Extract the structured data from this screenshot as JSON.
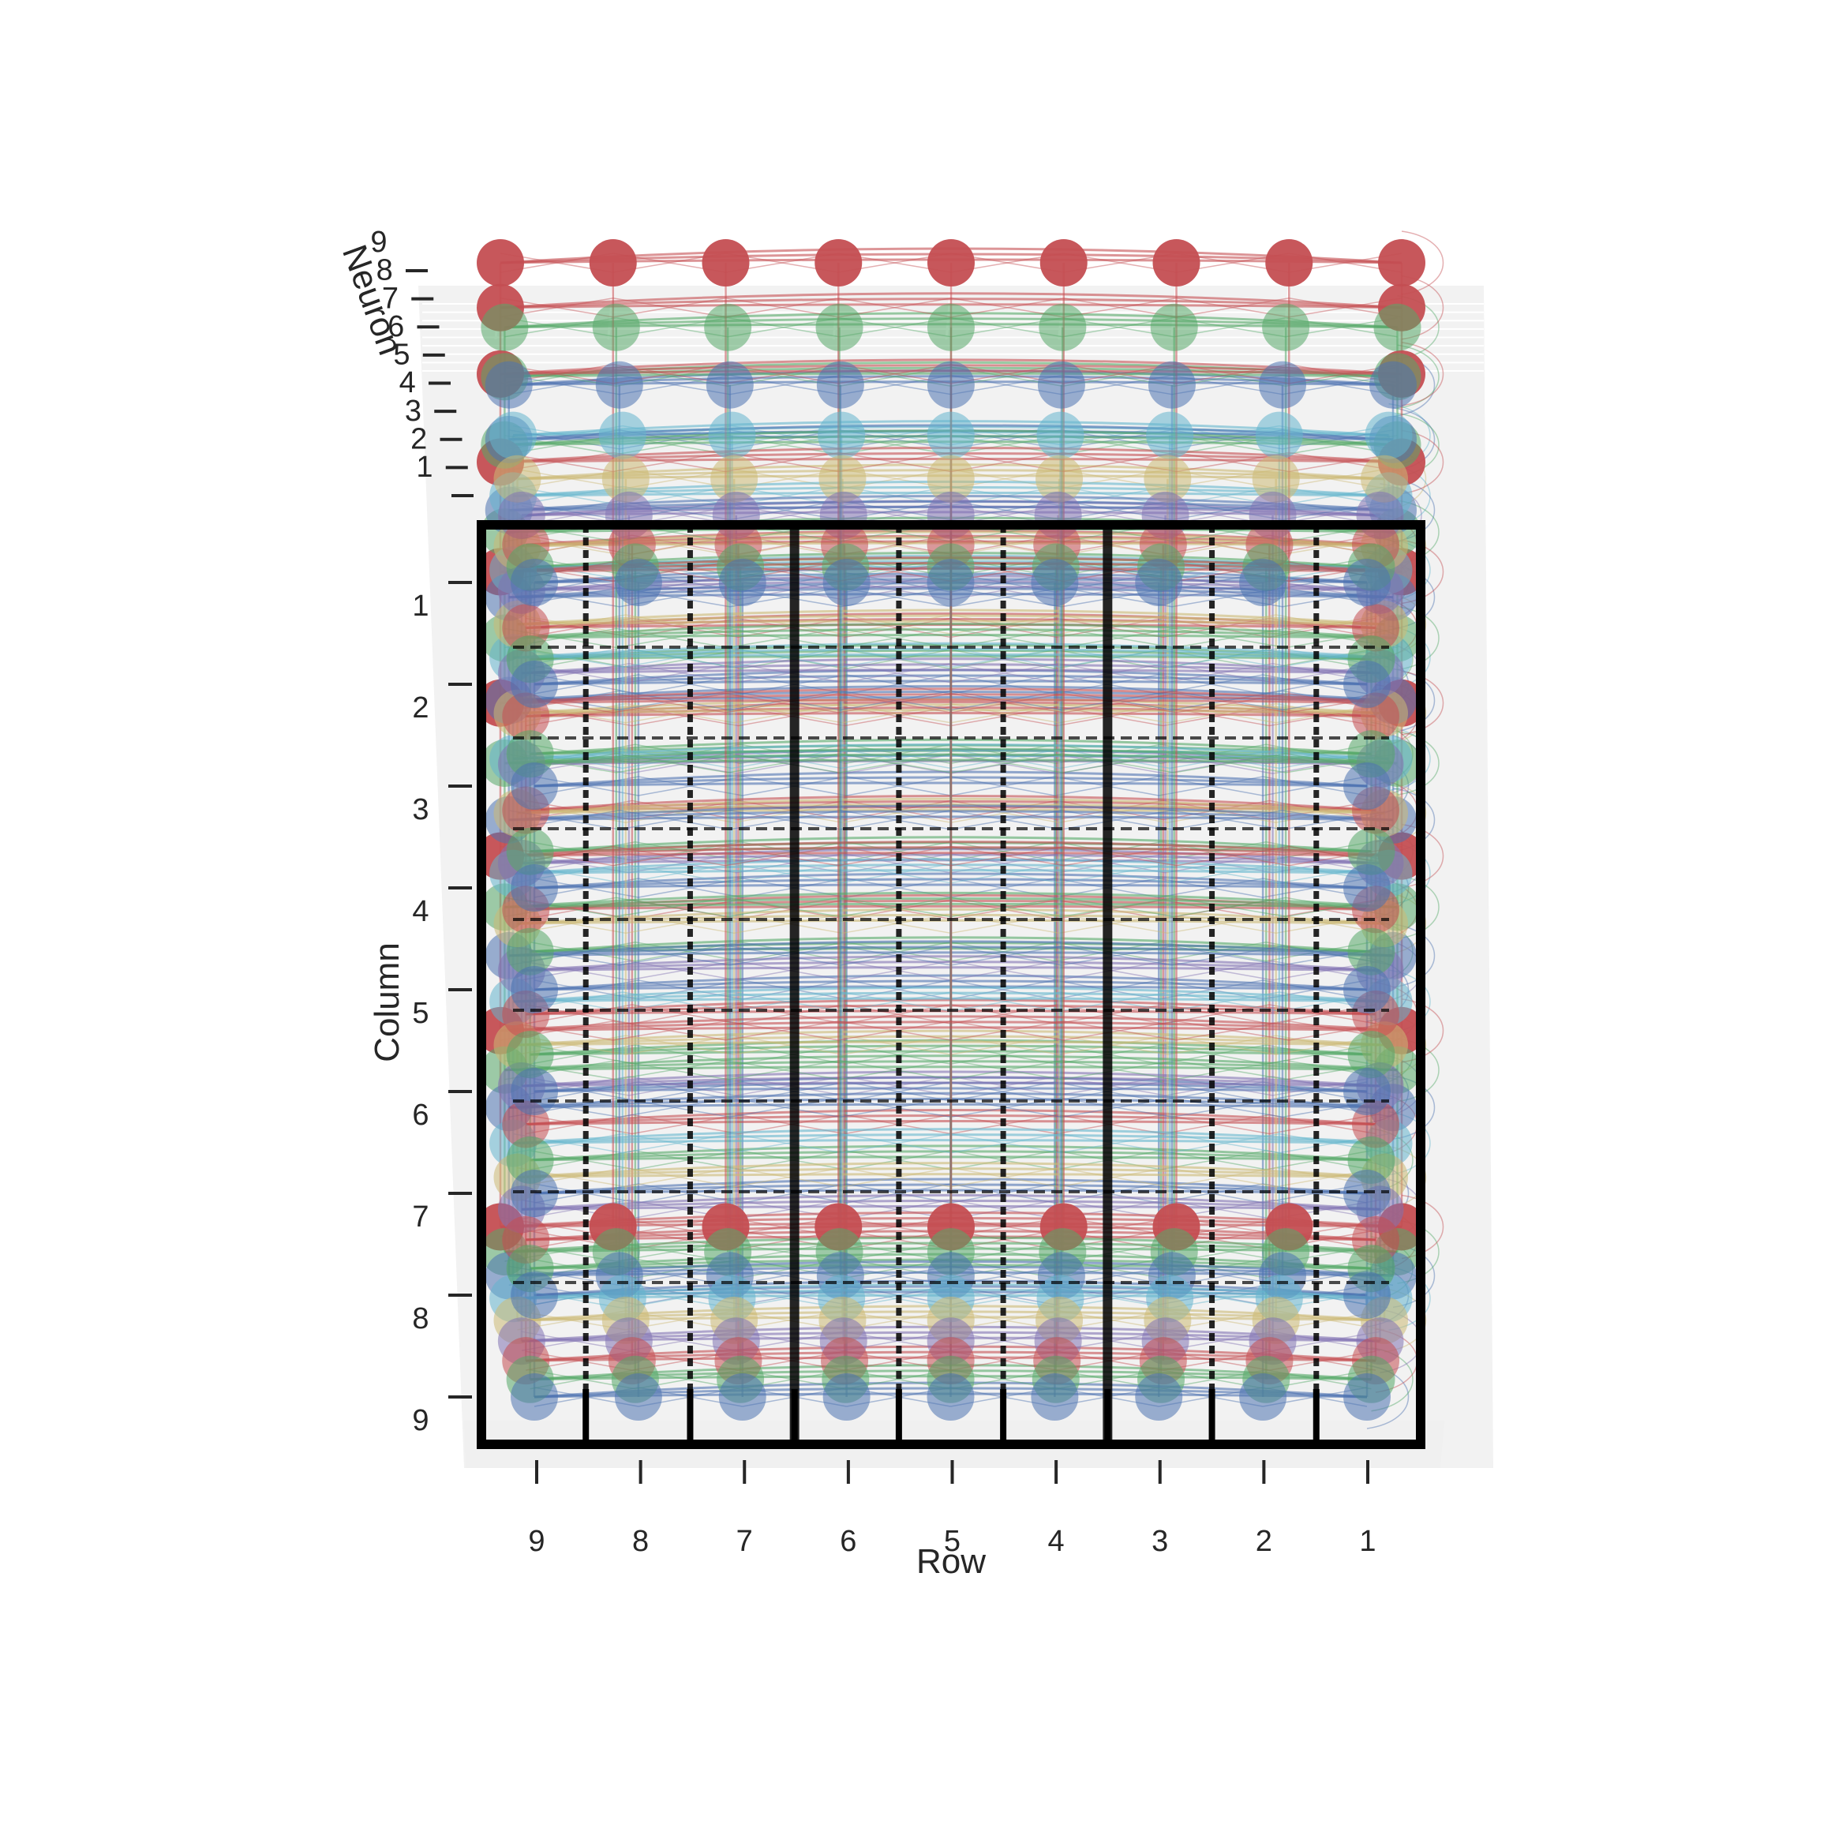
{
  "chart_data": {
    "type": "scatter",
    "projection": "3d",
    "style": "seaborn-darkgrid",
    "title": "",
    "xlabel": "Row",
    "ylabel": "Column",
    "zlabel": "Neuron",
    "x_ticks": [
      "9",
      "8",
      "7",
      "6",
      "5",
      "4",
      "3",
      "2",
      "1"
    ],
    "y_ticks": [
      "1",
      "2",
      "3",
      "4",
      "5",
      "6",
      "7",
      "8",
      "9"
    ],
    "z_ticks": [
      "1",
      "2",
      "3",
      "4",
      "5",
      "6",
      "7",
      "8",
      "9"
    ],
    "xlim": [
      1,
      9
    ],
    "ylim": [
      1,
      9
    ],
    "zlim": [
      1,
      9
    ],
    "grid": true,
    "nodes": {
      "rows": [
        1,
        2,
        3,
        4,
        5,
        6,
        7,
        8,
        9
      ],
      "columns": [
        1,
        2,
        3,
        4,
        5,
        6,
        7,
        8,
        9
      ],
      "neurons": [
        1,
        2,
        3,
        4,
        5,
        6,
        7,
        8,
        9
      ]
    },
    "layer_colors": [
      "#4c72b0",
      "#55a868",
      "#c44e52",
      "#8172b2",
      "#ccb974",
      "#64b5cd",
      "#4c72b0",
      "#55a868",
      "#c44e52"
    ],
    "box_grid": "3x3 blocks",
    "box_color": "#000000"
  }
}
